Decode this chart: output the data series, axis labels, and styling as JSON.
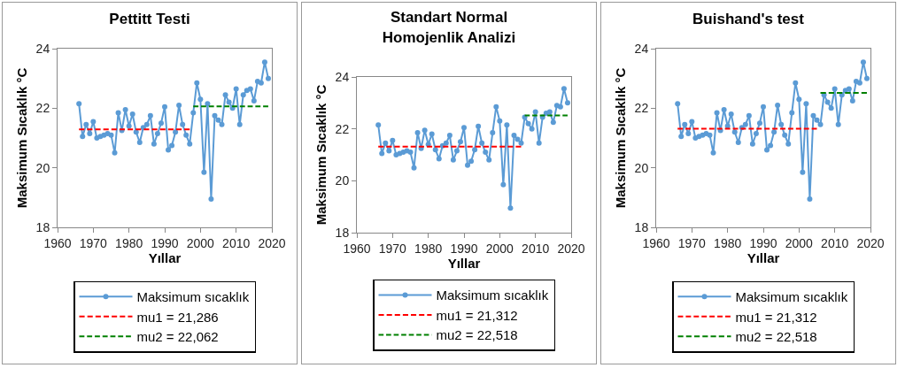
{
  "chart_data": [
    {
      "type": "line",
      "title": "Pettitt Testi",
      "xlabel": "Yıllar",
      "ylabel": "Maksimum Sıcaklık °C",
      "x": [
        1966,
        1967,
        1968,
        1969,
        1970,
        1971,
        1972,
        1973,
        1974,
        1975,
        1976,
        1977,
        1978,
        1979,
        1980,
        1981,
        1982,
        1983,
        1984,
        1985,
        1986,
        1987,
        1988,
        1989,
        1990,
        1991,
        1992,
        1993,
        1994,
        1995,
        1996,
        1997,
        1998,
        1999,
        2000,
        2001,
        2002,
        2003,
        2004,
        2005,
        2006,
        2007,
        2008,
        2009,
        2010,
        2011,
        2012,
        2013,
        2014,
        2015,
        2016,
        2017,
        2018,
        2019
      ],
      "xlim": [
        1960,
        2020
      ],
      "xticks": [
        1960,
        1970,
        1980,
        1990,
        2000,
        2010,
        2020
      ],
      "ylim": [
        18,
        24
      ],
      "yticks": [
        18,
        20,
        22,
        24
      ],
      "grid": false,
      "legend": "bottom",
      "series": [
        {
          "name": "Maksimum sıcaklık",
          "color": "#5b9bd5",
          "marker": "circle",
          "line_style": "solid",
          "values": [
            22.15,
            21.05,
            21.45,
            21.15,
            21.55,
            21.0,
            21.05,
            21.1,
            21.15,
            21.1,
            20.5,
            21.85,
            21.25,
            21.95,
            21.4,
            21.8,
            21.2,
            20.85,
            21.35,
            21.45,
            21.75,
            20.8,
            21.15,
            21.5,
            22.05,
            20.6,
            20.75,
            21.2,
            22.1,
            21.45,
            21.1,
            20.8,
            21.85,
            22.85,
            22.3,
            19.85,
            22.15,
            18.95,
            21.75,
            21.6,
            21.45,
            22.45,
            22.2,
            22.0,
            22.65,
            21.45,
            22.45,
            22.6,
            22.65,
            22.25,
            22.9,
            22.85,
            23.55,
            23.0
          ]
        },
        {
          "name": "mu1 = 21,286",
          "color": "#ff0000",
          "marker": "none",
          "line_style": "dashed",
          "x": [
            1966,
            1997
          ],
          "values": [
            21.286,
            21.286
          ]
        },
        {
          "name": "mu2 = 22,062",
          "color": "#008000",
          "marker": "none",
          "line_style": "dashed",
          "x": [
            1998,
            2019
          ],
          "values": [
            22.062,
            22.062
          ]
        }
      ]
    },
    {
      "type": "line",
      "title": "Standart Normal\nHomojenlik Analizi",
      "xlabel": "Yıllar",
      "ylabel": "Maksimum Sıcaklık °C",
      "x": [
        1966,
        1967,
        1968,
        1969,
        1970,
        1971,
        1972,
        1973,
        1974,
        1975,
        1976,
        1977,
        1978,
        1979,
        1980,
        1981,
        1982,
        1983,
        1984,
        1985,
        1986,
        1987,
        1988,
        1989,
        1990,
        1991,
        1992,
        1993,
        1994,
        1995,
        1996,
        1997,
        1998,
        1999,
        2000,
        2001,
        2002,
        2003,
        2004,
        2005,
        2006,
        2007,
        2008,
        2009,
        2010,
        2011,
        2012,
        2013,
        2014,
        2015,
        2016,
        2017,
        2018,
        2019
      ],
      "xlim": [
        1960,
        2020
      ],
      "xticks": [
        1960,
        1970,
        1980,
        1990,
        2000,
        2010,
        2020
      ],
      "ylim": [
        18,
        24
      ],
      "yticks": [
        18,
        20,
        22,
        24
      ],
      "grid": false,
      "legend": "bottom",
      "series": [
        {
          "name": "Maksimum sıcaklık",
          "color": "#5b9bd5",
          "marker": "circle",
          "line_style": "solid",
          "values": [
            22.15,
            21.05,
            21.45,
            21.15,
            21.55,
            21.0,
            21.05,
            21.1,
            21.15,
            21.1,
            20.5,
            21.85,
            21.25,
            21.95,
            21.4,
            21.8,
            21.2,
            20.85,
            21.35,
            21.45,
            21.75,
            20.8,
            21.15,
            21.5,
            22.05,
            20.6,
            20.75,
            21.2,
            22.1,
            21.45,
            21.1,
            20.8,
            21.85,
            22.85,
            22.3,
            19.85,
            22.15,
            18.95,
            21.75,
            21.6,
            21.45,
            22.45,
            22.2,
            22.0,
            22.65,
            21.45,
            22.45,
            22.6,
            22.65,
            22.25,
            22.9,
            22.85,
            23.55,
            23.0
          ]
        },
        {
          "name": "mu1 = 21,312",
          "color": "#ff0000",
          "marker": "none",
          "line_style": "dashed",
          "x": [
            1966,
            2006
          ],
          "values": [
            21.312,
            21.312
          ]
        },
        {
          "name": "mu2 = 22,518",
          "color": "#008000",
          "marker": "none",
          "line_style": "dashed",
          "x": [
            2007,
            2019
          ],
          "values": [
            22.518,
            22.518
          ]
        }
      ]
    },
    {
      "type": "line",
      "title": "Buishand's test",
      "xlabel": "Yıllar",
      "ylabel": "Maksimum Sıcaklık °C",
      "x": [
        1966,
        1967,
        1968,
        1969,
        1970,
        1971,
        1972,
        1973,
        1974,
        1975,
        1976,
        1977,
        1978,
        1979,
        1980,
        1981,
        1982,
        1983,
        1984,
        1985,
        1986,
        1987,
        1988,
        1989,
        1990,
        1991,
        1992,
        1993,
        1994,
        1995,
        1996,
        1997,
        1998,
        1999,
        2000,
        2001,
        2002,
        2003,
        2004,
        2005,
        2006,
        2007,
        2008,
        2009,
        2010,
        2011,
        2012,
        2013,
        2014,
        2015,
        2016,
        2017,
        2018,
        2019
      ],
      "xlim": [
        1960,
        2020
      ],
      "xticks": [
        1960,
        1970,
        1980,
        1990,
        2000,
        2010,
        2020
      ],
      "ylim": [
        18,
        24
      ],
      "yticks": [
        18,
        20,
        22,
        24
      ],
      "grid": false,
      "legend": "bottom",
      "series": [
        {
          "name": "Maksimum sıcaklık",
          "color": "#5b9bd5",
          "marker": "circle",
          "line_style": "solid",
          "values": [
            22.15,
            21.05,
            21.45,
            21.15,
            21.55,
            21.0,
            21.05,
            21.1,
            21.15,
            21.1,
            20.5,
            21.85,
            21.25,
            21.95,
            21.4,
            21.8,
            21.2,
            20.85,
            21.35,
            21.45,
            21.75,
            20.8,
            21.15,
            21.5,
            22.05,
            20.6,
            20.75,
            21.2,
            22.1,
            21.45,
            21.1,
            20.8,
            21.85,
            22.85,
            22.3,
            19.85,
            22.15,
            18.95,
            21.75,
            21.6,
            21.45,
            22.45,
            22.2,
            22.0,
            22.65,
            21.45,
            22.45,
            22.6,
            22.65,
            22.25,
            22.9,
            22.85,
            23.55,
            23.0
          ]
        },
        {
          "name": "mu1 = 21,312",
          "color": "#ff0000",
          "marker": "none",
          "line_style": "dashed",
          "x": [
            1966,
            2005
          ],
          "values": [
            21.312,
            21.312
          ]
        },
        {
          "name": "mu2 = 22,518",
          "color": "#008000",
          "marker": "none",
          "line_style": "dashed",
          "x": [
            2006,
            2019
          ],
          "values": [
            22.518,
            22.518
          ]
        }
      ]
    }
  ]
}
